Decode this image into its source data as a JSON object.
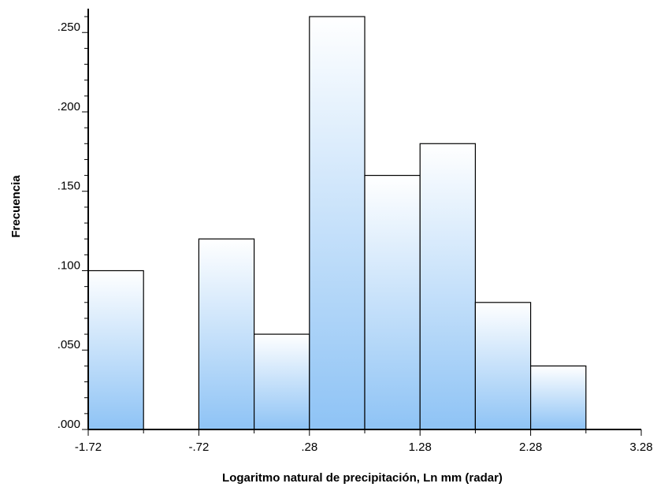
{
  "chart_data": {
    "type": "bar",
    "subtype": "histogram",
    "title": "",
    "xlabel": "Logaritmo natural de precipitación, Ln mm (radar)",
    "ylabel": "Frecuencia",
    "x_ticks": [
      -1.72,
      -0.72,
      0.28,
      1.28,
      2.28,
      3.28
    ],
    "x_tick_labels": [
      "-1.72",
      "-.72",
      ".28",
      "1.28",
      "2.28",
      "3.28"
    ],
    "y_ticks": [
      0,
      0.05,
      0.1,
      0.15,
      0.2,
      0.25
    ],
    "y_tick_labels": [
      ".000",
      ".050",
      ".100",
      ".150",
      ".200",
      ".250"
    ],
    "xlim": [
      -1.72,
      3.28
    ],
    "ylim": [
      0,
      0.265
    ],
    "bin_width": 0.5,
    "bins": [
      {
        "start": -1.72,
        "end": -1.22,
        "value": 0.1
      },
      {
        "start": -1.22,
        "end": -0.72,
        "value": 0.0
      },
      {
        "start": -0.72,
        "end": -0.22,
        "value": 0.12
      },
      {
        "start": -0.22,
        "end": 0.28,
        "value": 0.06
      },
      {
        "start": 0.28,
        "end": 0.78,
        "value": 0.26
      },
      {
        "start": 0.78,
        "end": 1.28,
        "value": 0.16
      },
      {
        "start": 1.28,
        "end": 1.78,
        "value": 0.18
      },
      {
        "start": 1.78,
        "end": 2.28,
        "value": 0.08
      },
      {
        "start": 2.28,
        "end": 2.78,
        "value": 0.04
      }
    ],
    "grid": false,
    "legend": "none",
    "colors": {
      "bar_top": "#ffffff",
      "bar_bottom": "#8ec3f5",
      "bar_edge": "#000000",
      "axis": "#000000"
    }
  }
}
